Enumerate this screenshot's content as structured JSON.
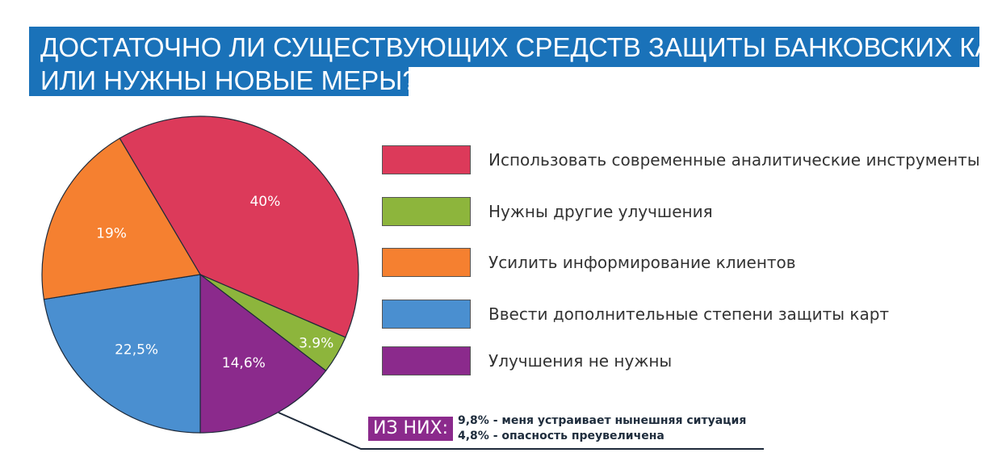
{
  "chart_data": {
    "type": "pie",
    "title": [
      "ДОСТАТОЧНО ЛИ СУЩЕСТВУЮЩИХ СРЕДСТВ ЗАЩИТЫ БАНКОВСКИХ КАРТ",
      "ИЛИ НУЖНЫ НОВЫЕ МЕРЫ?"
    ],
    "slices": [
      {
        "name": "Использовать современные аналитические инструменты",
        "value": 40,
        "label": "40%",
        "color": "#dc3a5a"
      },
      {
        "name": "Нужны другие улучшения",
        "value": 3.9,
        "label": "3.9%",
        "color": "#8db53c"
      },
      {
        "name": "Улучшения не нужны",
        "value": 14.6,
        "label": "14,6%",
        "color": "#8b2a8c"
      },
      {
        "name": "Ввести дополнительные степени защиты карт",
        "value": 22.5,
        "label": "22,5%",
        "color": "#4a8fd0"
      },
      {
        "name": "Усилить информирование клиентов",
        "value": 19,
        "label": "19%",
        "color": "#f58030"
      }
    ],
    "legend": [
      {
        "label": "Использовать современные аналитические инструменты",
        "color": "#dc3a5a"
      },
      {
        "label": "Нужны другие улучшения",
        "color": "#8db53c"
      },
      {
        "label": "Усилить информирование клиентов",
        "color": "#f58030"
      },
      {
        "label": "Ввести дополнительные степени защиты карт",
        "color": "#4a8fd0"
      },
      {
        "label": "Улучшения не нужны",
        "color": "#8b2a8c"
      }
    ],
    "legend_position": "right",
    "annotation": {
      "label": "ИЗ НИХ:",
      "items": [
        "9,8% - меня устраивает нынешняя ситуация",
        "4,8% - опасность преувеличена"
      ]
    }
  }
}
